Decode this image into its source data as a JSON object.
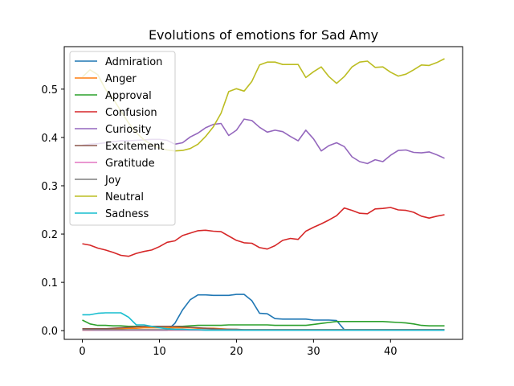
{
  "chart_data": {
    "type": "line",
    "title": "Evolutions of emotions for Sad Amy",
    "xlabel": "",
    "ylabel": "",
    "xlim": [
      -2.35,
      49.35
    ],
    "ylim": [
      -0.018,
      0.588
    ],
    "xticks": [
      0,
      10,
      20,
      30,
      40
    ],
    "yticks": [
      0.0,
      0.1,
      0.2,
      0.3,
      0.4,
      0.5
    ],
    "ytick_labels": [
      "0.0",
      "0.1",
      "0.2",
      "0.3",
      "0.4",
      "0.5"
    ],
    "grid": false,
    "legend": "upper-left",
    "x": [
      0,
      1,
      2,
      3,
      4,
      5,
      6,
      7,
      8,
      9,
      10,
      11,
      12,
      13,
      14,
      15,
      16,
      17,
      18,
      19,
      20,
      21,
      22,
      23,
      24,
      25,
      26,
      27,
      28,
      29,
      30,
      31,
      32,
      33,
      34,
      35,
      36,
      37,
      38,
      39,
      40,
      41,
      42,
      43,
      44,
      45,
      46,
      47
    ],
    "series": [
      {
        "name": "Admiration",
        "color": "#1f77b4",
        "values": [
          0.001,
          0.001,
          0.001,
          0.001,
          0.001,
          0.001,
          0.001,
          0.001,
          0.001,
          0.001,
          0.001,
          0.001,
          0.015,
          0.043,
          0.064,
          0.074,
          0.074,
          0.073,
          0.073,
          0.073,
          0.075,
          0.075,
          0.062,
          0.036,
          0.035,
          0.025,
          0.024,
          0.024,
          0.024,
          0.024,
          0.022,
          0.022,
          0.022,
          0.021,
          0.002,
          0.002,
          0.002,
          0.002,
          0.002,
          0.002,
          0.002,
          0.002,
          0.002,
          0.002,
          0.002,
          0.002,
          0.002,
          0.002
        ]
      },
      {
        "name": "Anger",
        "color": "#ff7f0e",
        "values": [
          0.001,
          0.001,
          0.002,
          0.002,
          0.003,
          0.004,
          0.005,
          0.005,
          0.006,
          0.006,
          0.006,
          0.006,
          0.006,
          0.006,
          0.006,
          0.005,
          0.005,
          0.005,
          0.004,
          0.003,
          0.002,
          0.002,
          0.002,
          0.002,
          0.002,
          0.002,
          0.002,
          0.002,
          0.002,
          0.002,
          0.002,
          0.002,
          0.002,
          0.002,
          0.002,
          0.002,
          0.002,
          0.002,
          0.002,
          0.002,
          0.002,
          0.002,
          0.002,
          0.002,
          0.002,
          0.002,
          0.002,
          0.002
        ]
      },
      {
        "name": "Approval",
        "color": "#2ca02c",
        "values": [
          0.022,
          0.014,
          0.011,
          0.011,
          0.01,
          0.01,
          0.009,
          0.009,
          0.009,
          0.009,
          0.009,
          0.009,
          0.009,
          0.009,
          0.01,
          0.011,
          0.011,
          0.011,
          0.011,
          0.012,
          0.012,
          0.012,
          0.012,
          0.012,
          0.012,
          0.011,
          0.011,
          0.011,
          0.011,
          0.011,
          0.013,
          0.015,
          0.017,
          0.019,
          0.019,
          0.019,
          0.019,
          0.019,
          0.019,
          0.019,
          0.018,
          0.017,
          0.016,
          0.014,
          0.011,
          0.01,
          0.01,
          0.01
        ]
      },
      {
        "name": "Confusion",
        "color": "#d62728",
        "values": [
          0.18,
          0.177,
          0.171,
          0.167,
          0.162,
          0.156,
          0.154,
          0.16,
          0.164,
          0.167,
          0.174,
          0.183,
          0.186,
          0.197,
          0.202,
          0.207,
          0.208,
          0.206,
          0.205,
          0.196,
          0.187,
          0.182,
          0.181,
          0.172,
          0.169,
          0.176,
          0.187,
          0.191,
          0.189,
          0.206,
          0.214,
          0.221,
          0.229,
          0.238,
          0.254,
          0.249,
          0.243,
          0.242,
          0.252,
          0.253,
          0.255,
          0.25,
          0.249,
          0.245,
          0.237,
          0.233,
          0.237,
          0.24
        ]
      },
      {
        "name": "Curiosity",
        "color": "#9467bd",
        "values": [
          0.384,
          0.386,
          0.387,
          0.389,
          0.391,
          0.393,
          0.393,
          0.394,
          0.395,
          0.396,
          0.396,
          0.394,
          0.386,
          0.389,
          0.401,
          0.409,
          0.42,
          0.427,
          0.429,
          0.404,
          0.415,
          0.438,
          0.435,
          0.421,
          0.411,
          0.415,
          0.412,
          0.402,
          0.393,
          0.415,
          0.397,
          0.372,
          0.383,
          0.389,
          0.381,
          0.36,
          0.35,
          0.346,
          0.354,
          0.35,
          0.363,
          0.373,
          0.374,
          0.369,
          0.368,
          0.37,
          0.364,
          0.357
        ]
      },
      {
        "name": "Excitement",
        "color": "#8c564b",
        "values": [
          0.004,
          0.004,
          0.004,
          0.004,
          0.005,
          0.006,
          0.007,
          0.008,
          0.009,
          0.009,
          0.009,
          0.009,
          0.009,
          0.008,
          0.007,
          0.006,
          0.005,
          0.004,
          0.003,
          0.003,
          0.003,
          0.002,
          0.002,
          0.002,
          0.002,
          0.002,
          0.002,
          0.002,
          0.002,
          0.002,
          0.002,
          0.002,
          0.002,
          0.002,
          0.002,
          0.002,
          0.002,
          0.002,
          0.002,
          0.002,
          0.002,
          0.002,
          0.002,
          0.002,
          0.002,
          0.002,
          0.002,
          0.002
        ]
      },
      {
        "name": "Gratitude",
        "color": "#e377c2",
        "values": [
          0.001,
          0.001,
          0.001,
          0.001,
          0.001,
          0.001,
          0.001,
          0.001,
          0.001,
          0.001,
          0.001,
          0.001,
          0.001,
          0.001,
          0.001,
          0.001,
          0.001,
          0.001,
          0.001,
          0.001,
          0.001,
          0.001,
          0.001,
          0.001,
          0.001,
          0.001,
          0.001,
          0.001,
          0.001,
          0.001,
          0.001,
          0.001,
          0.001,
          0.001,
          0.001,
          0.001,
          0.001,
          0.001,
          0.001,
          0.001,
          0.001,
          0.001,
          0.001,
          0.001,
          0.001,
          0.001,
          0.001,
          0.001
        ]
      },
      {
        "name": "Joy",
        "color": "#7f7f7f",
        "values": [
          0.002,
          0.002,
          0.002,
          0.002,
          0.002,
          0.002,
          0.002,
          0.002,
          0.002,
          0.002,
          0.002,
          0.002,
          0.002,
          0.002,
          0.002,
          0.002,
          0.002,
          0.002,
          0.002,
          0.002,
          0.002,
          0.002,
          0.002,
          0.002,
          0.002,
          0.002,
          0.002,
          0.002,
          0.002,
          0.002,
          0.002,
          0.002,
          0.002,
          0.002,
          0.002,
          0.002,
          0.002,
          0.002,
          0.002,
          0.002,
          0.002,
          0.002,
          0.002,
          0.002,
          0.002,
          0.002,
          0.002,
          0.002
        ]
      },
      {
        "name": "Neutral",
        "color": "#bcbd22",
        "values": [
          0.525,
          0.54,
          0.53,
          0.5,
          0.48,
          0.455,
          0.43,
          0.41,
          0.395,
          0.385,
          0.378,
          0.374,
          0.372,
          0.373,
          0.377,
          0.386,
          0.402,
          0.422,
          0.45,
          0.495,
          0.501,
          0.496,
          0.516,
          0.55,
          0.556,
          0.556,
          0.551,
          0.551,
          0.551,
          0.524,
          0.536,
          0.546,
          0.526,
          0.512,
          0.526,
          0.546,
          0.556,
          0.558,
          0.545,
          0.546,
          0.535,
          0.527,
          0.531,
          0.54,
          0.55,
          0.549,
          0.555,
          0.563
        ]
      },
      {
        "name": "Sadness",
        "color": "#17becf",
        "values": [
          0.033,
          0.033,
          0.036,
          0.037,
          0.037,
          0.037,
          0.028,
          0.012,
          0.012,
          0.009,
          0.006,
          0.004,
          0.003,
          0.003,
          0.002,
          0.002,
          0.001,
          0.001,
          0.001,
          0.001,
          0.001,
          0.001,
          0.001,
          0.001,
          0.001,
          0.001,
          0.001,
          0.001,
          0.001,
          0.001,
          0.001,
          0.001,
          0.001,
          0.001,
          0.001,
          0.001,
          0.001,
          0.001,
          0.001,
          0.001,
          0.001,
          0.001,
          0.001,
          0.001,
          0.001,
          0.001,
          0.001,
          0.001
        ]
      }
    ]
  }
}
